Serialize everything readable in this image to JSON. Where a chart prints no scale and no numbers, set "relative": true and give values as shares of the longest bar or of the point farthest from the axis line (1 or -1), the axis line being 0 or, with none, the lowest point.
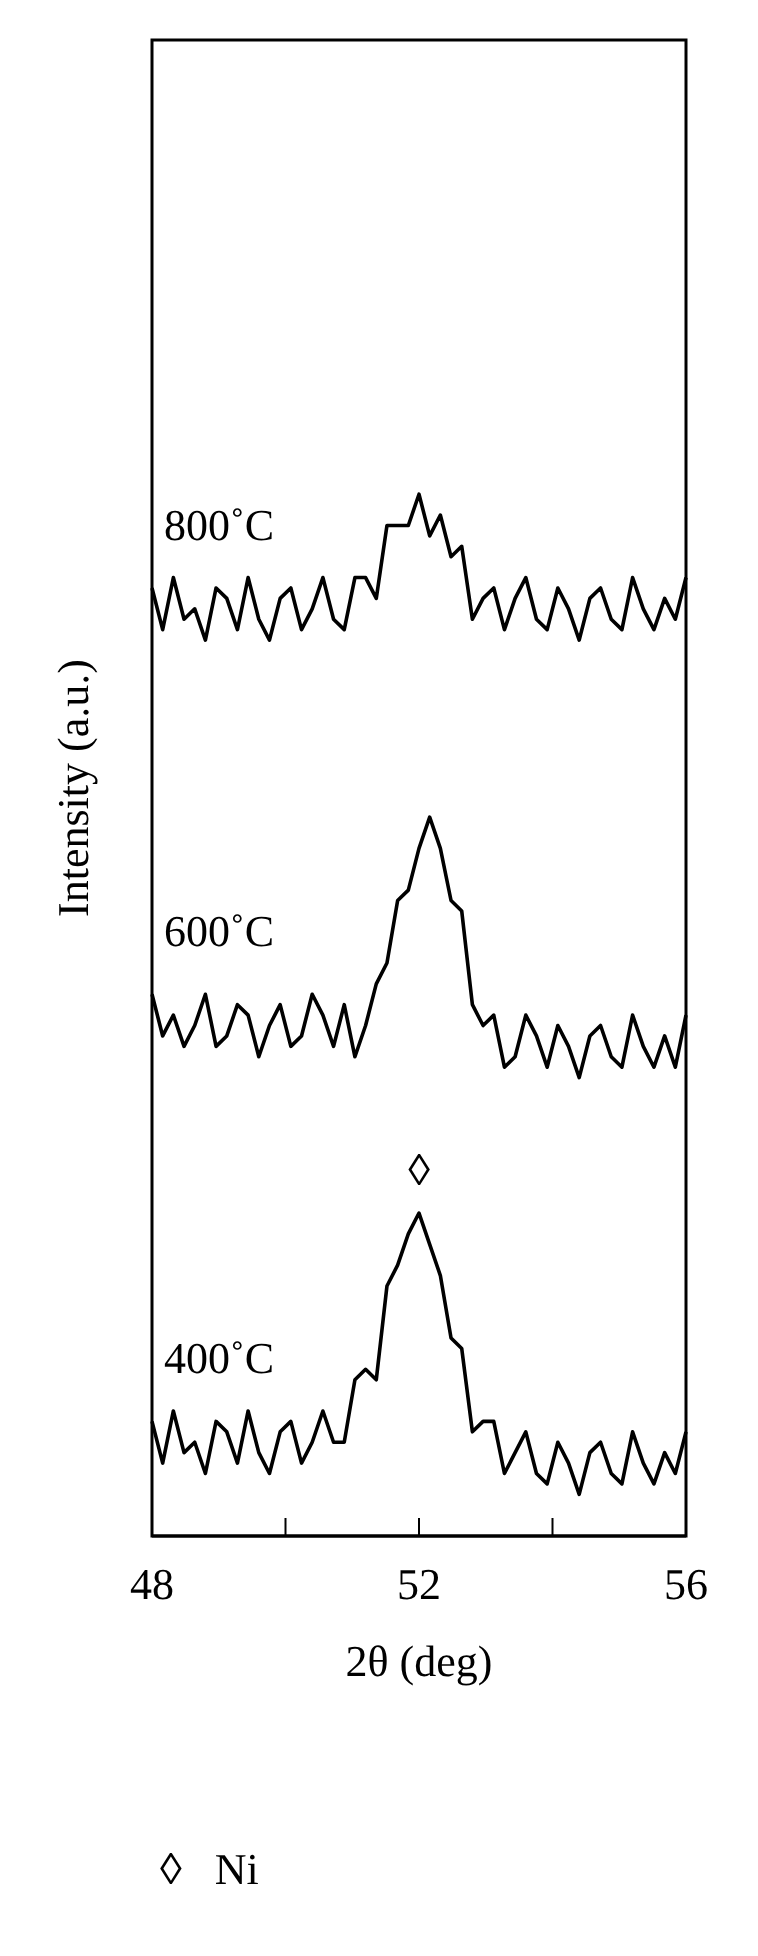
{
  "chart_data": {
    "type": "line",
    "xlabel": "2θ (deg)",
    "ylabel": "Intensity (a.u.)",
    "relative": true,
    "x": [
      48,
      48.16,
      48.32,
      48.48,
      48.64,
      48.8,
      48.96,
      49.12,
      49.28,
      49.44,
      49.6,
      49.76,
      49.92,
      50.08,
      50.24,
      50.4,
      50.56,
      50.72,
      50.88,
      51.04,
      51.2,
      51.36,
      51.52,
      51.68,
      51.84,
      52,
      52.16,
      52.32,
      52.48,
      52.64,
      52.8,
      52.96,
      53.12,
      53.28,
      53.44,
      53.6,
      53.76,
      53.92,
      54.08,
      54.24,
      54.4,
      54.56,
      54.72,
      54.88,
      55.04,
      55.2,
      55.36,
      55.52,
      55.68,
      55.84,
      56
    ],
    "xlim": [
      48,
      56
    ],
    "xticks": [
      48,
      {
        "value": 50,
        "label": null
      },
      52,
      {
        "value": 54,
        "label": null
      },
      56
    ],
    "series": [
      {
        "name": "800˚C",
        "color": "#000000",
        "values": [
          0.91,
          0.87,
          0.92,
          0.88,
          0.89,
          0.86,
          0.91,
          0.9,
          0.87,
          0.92,
          0.88,
          0.86,
          0.9,
          0.91,
          0.87,
          0.89,
          0.92,
          0.88,
          0.87,
          0.92,
          0.92,
          0.9,
          0.97,
          0.97,
          0.97,
          1.0,
          0.96,
          0.98,
          0.94,
          0.95,
          0.88,
          0.9,
          0.91,
          0.87,
          0.9,
          0.92,
          0.88,
          0.87,
          0.91,
          0.89,
          0.86,
          0.9,
          0.91,
          0.88,
          0.87,
          0.92,
          0.89,
          0.87,
          0.9,
          0.88,
          0.92
        ]
      },
      {
        "name": "600˚C",
        "color": "#000000",
        "values": [
          0.52,
          0.48,
          0.5,
          0.47,
          0.49,
          0.52,
          0.47,
          0.48,
          0.51,
          0.5,
          0.46,
          0.49,
          0.51,
          0.47,
          0.48,
          0.52,
          0.5,
          0.47,
          0.51,
          0.46,
          0.49,
          0.53,
          0.55,
          0.61,
          0.62,
          0.66,
          0.69,
          0.66,
          0.61,
          0.6,
          0.51,
          0.49,
          0.5,
          0.45,
          0.46,
          0.5,
          0.48,
          0.45,
          0.49,
          0.47,
          0.44,
          0.48,
          0.49,
          0.46,
          0.45,
          0.5,
          0.47,
          0.45,
          0.48,
          0.45,
          0.5
        ]
      },
      {
        "name": "400˚C",
        "color": "#000000",
        "values": [
          0.11,
          0.07,
          0.12,
          0.08,
          0.09,
          0.06,
          0.11,
          0.1,
          0.07,
          0.12,
          0.08,
          0.06,
          0.1,
          0.11,
          0.07,
          0.09,
          0.12,
          0.09,
          0.09,
          0.15,
          0.16,
          0.15,
          0.24,
          0.26,
          0.29,
          0.31,
          0.28,
          0.25,
          0.19,
          0.18,
          0.1,
          0.11,
          0.11,
          0.06,
          0.08,
          0.1,
          0.06,
          0.05,
          0.09,
          0.07,
          0.04,
          0.08,
          0.09,
          0.06,
          0.05,
          0.1,
          0.07,
          0.05,
          0.08,
          0.06,
          0.1
        ]
      }
    ],
    "annotations": [
      "◊",
      "◊   Ni"
    ]
  }
}
